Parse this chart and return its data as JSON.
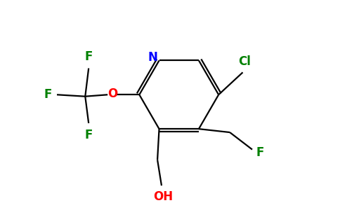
{
  "background_color": "#ffffff",
  "bond_color": "#000000",
  "atom_colors": {
    "N": "#0000ff",
    "O": "#ff0000",
    "F": "#008000",
    "Cl": "#008000",
    "OH": "#ff0000",
    "C": "#000000"
  },
  "figsize": [
    4.84,
    3.0
  ],
  "dpi": 100
}
